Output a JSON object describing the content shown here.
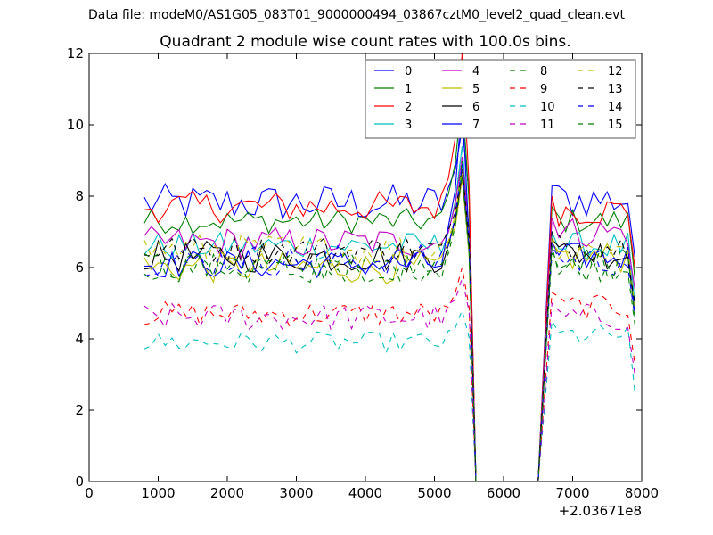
{
  "suptitle": "Data file: modeM0/AS1G05_083T01_9000000494_03867cztM0_level2_quad_clean.evt",
  "chart_data": {
    "type": "line",
    "title": "Quadrant 2 module wise count rates with 100.0s bins.",
    "xlabel": "",
    "ylabel": "",
    "x_offset_label": "+2.03671e8",
    "xlim": [
      0,
      8000
    ],
    "ylim": [
      0,
      12
    ],
    "xticks": [
      0,
      1000,
      2000,
      3000,
      4000,
      5000,
      6000,
      7000,
      8000
    ],
    "yticks": [
      0,
      2,
      4,
      6,
      8,
      10,
      12
    ],
    "grid": false,
    "legend_location": "top-right",
    "legend_columns": 4,
    "segments": [
      {
        "x_start": 800,
        "x_end": 5400,
        "step": 100
      },
      {
        "x_start": 6700,
        "x_end": 7900,
        "step": 100
      }
    ],
    "gap": {
      "drop_at": 5600,
      "recover_at": 6500
    },
    "series": [
      {
        "name": "0",
        "color": "#0000ff",
        "dash": "solid",
        "base": 7.8,
        "spread": 0.55,
        "peak": 9.9,
        "post_base": 7.9
      },
      {
        "name": "1",
        "color": "#008000",
        "dash": "solid",
        "base": 7.3,
        "spread": 0.35,
        "peak": 10.9,
        "post_base": 7.3
      },
      {
        "name": "2",
        "color": "#ff0000",
        "dash": "solid",
        "base": 7.7,
        "spread": 0.45,
        "peak": 12.0,
        "post_base": 7.6
      },
      {
        "name": "3",
        "color": "#00bfbf",
        "dash": "solid",
        "base": 6.6,
        "spread": 0.4,
        "peak": 9.4,
        "post_base": 6.6
      },
      {
        "name": "4",
        "color": "#bf00bf",
        "dash": "solid",
        "base": 6.7,
        "spread": 0.45,
        "peak": 9.1,
        "post_base": 7.0
      },
      {
        "name": "5",
        "color": "#bfbf00",
        "dash": "solid",
        "base": 6.0,
        "spread": 0.45,
        "peak": 8.5,
        "post_base": 6.3
      },
      {
        "name": "6",
        "color": "#000000",
        "dash": "solid",
        "base": 6.3,
        "spread": 0.45,
        "peak": 8.6,
        "post_base": 6.4
      },
      {
        "name": "7",
        "color": "#0000ff",
        "dash": "solid",
        "base": 6.1,
        "spread": 0.4,
        "peak": 10.7,
        "post_base": 6.3
      },
      {
        "name": "8",
        "color": "#008000",
        "dash": "dashed",
        "base": 6.0,
        "spread": 0.4,
        "peak": 9.0,
        "post_base": 6.0
      },
      {
        "name": "9",
        "color": "#ff0000",
        "dash": "dashed",
        "base": 4.7,
        "spread": 0.35,
        "peak": 6.0,
        "post_base": 4.9
      },
      {
        "name": "10",
        "color": "#00bfbf",
        "dash": "dashed",
        "base": 3.9,
        "spread": 0.3,
        "peak": 4.8,
        "post_base": 4.1
      },
      {
        "name": "11",
        "color": "#bf00bf",
        "dash": "dashed",
        "base": 4.6,
        "spread": 0.4,
        "peak": 5.7,
        "post_base": 4.6
      },
      {
        "name": "12",
        "color": "#bfbf00",
        "dash": "dashed",
        "base": 6.5,
        "spread": 0.45,
        "peak": 8.7,
        "post_base": 6.5
      },
      {
        "name": "13",
        "color": "#000000",
        "dash": "dashed",
        "base": 6.5,
        "spread": 0.4,
        "peak": 8.8,
        "post_base": 6.6
      },
      {
        "name": "14",
        "color": "#0000ff",
        "dash": "dashed",
        "base": 6.2,
        "spread": 0.45,
        "peak": 8.9,
        "post_base": 6.2
      },
      {
        "name": "15",
        "color": "#008000",
        "dash": "dashed",
        "base": 6.0,
        "spread": 0.45,
        "peak": 8.6,
        "post_base": 6.2
      }
    ]
  }
}
